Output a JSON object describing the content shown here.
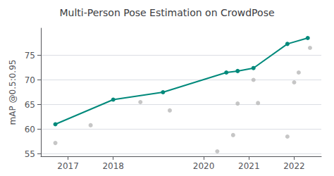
{
  "chart_data": {
    "type": "line",
    "title": "Multi-Person Pose Estimation on CrowdPose",
    "ylabel": "mAP @0.5:0.95",
    "series": [
      {
        "type": "scatter",
        "color": "#b8b8b8",
        "marker": "circle",
        "x": [
          2016.72,
          2017.5,
          2018.6,
          2019.25,
          2020.3,
          2020.65,
          2020.75,
          2021.1,
          2021.2,
          2021.85,
          2022.0,
          2022.1,
          2022.35
        ],
        "values": [
          57.2,
          60.8,
          65.5,
          63.8,
          55.5,
          58.8,
          65.2,
          70.0,
          65.3,
          58.5,
          69.5,
          71.5,
          76.5
        ]
      },
      {
        "type": "line",
        "color": "#00897B",
        "marker": "circle",
        "x": [
          2016.72,
          2018.0,
          2019.1,
          2020.5,
          2020.75,
          2021.1,
          2021.85,
          2022.3
        ],
        "values": [
          61.0,
          66.0,
          67.5,
          71.5,
          71.8,
          72.4,
          77.3,
          78.5
        ]
      }
    ],
    "xlim": [
      2016.4,
      2022.6
    ],
    "ylim": [
      54.5,
      80.5
    ],
    "xticks": [
      2017,
      2018,
      2020,
      2021,
      2022
    ],
    "yticks": [
      55,
      60,
      65,
      70,
      75
    ],
    "grid": true
  }
}
